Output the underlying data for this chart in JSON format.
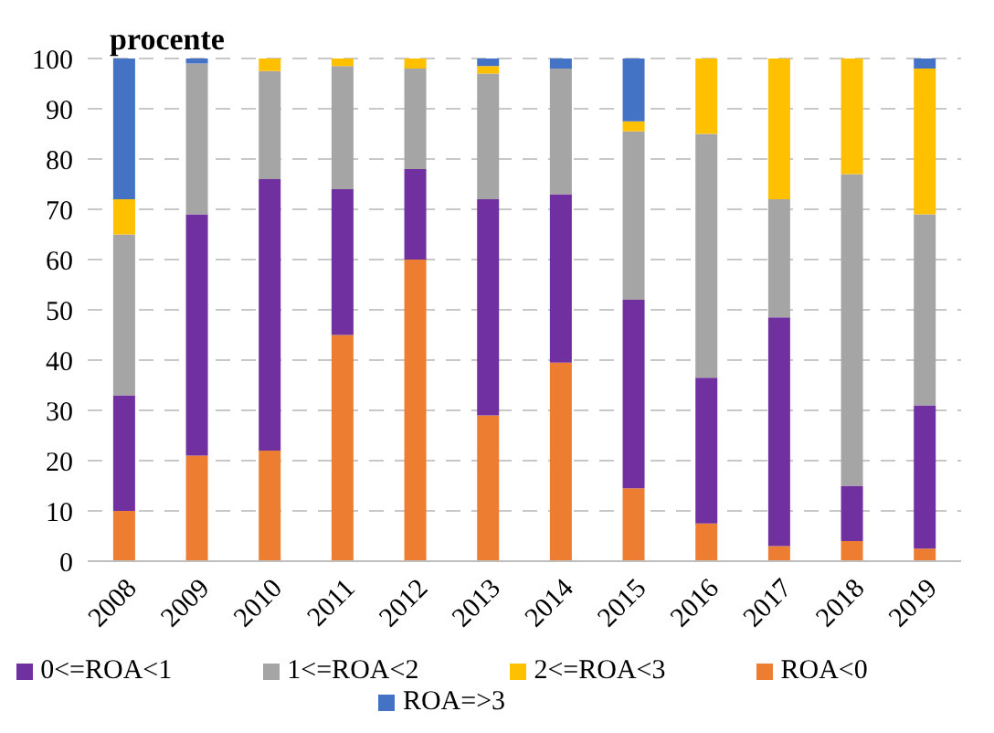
{
  "chart_data": {
    "type": "bar",
    "title": "procente",
    "stacked": true,
    "categories": [
      "2008",
      "2009",
      "2010",
      "2011",
      "2012",
      "2013",
      "2014",
      "2015",
      "2016",
      "2017",
      "2018",
      "2019"
    ],
    "series": [
      {
        "name": "ROA<0",
        "color": "#ed7d31",
        "values": [
          10,
          21,
          22,
          45,
          60,
          29,
          39.5,
          14.5,
          7.5,
          3,
          4,
          2.5
        ]
      },
      {
        "name": "0<=ROA<1",
        "color": "#7030a0",
        "values": [
          23,
          48,
          54,
          29,
          18,
          43,
          33.5,
          37.5,
          29,
          45.5,
          11,
          28.5
        ]
      },
      {
        "name": "1<=ROA<2",
        "color": "#a5a5a5",
        "values": [
          32,
          30,
          21.5,
          24.5,
          20,
          25,
          25,
          33.5,
          48.5,
          23.5,
          62,
          38
        ]
      },
      {
        "name": "2<=ROA<3",
        "color": "#ffc000",
        "values": [
          7,
          0,
          2.5,
          1.5,
          2,
          1.5,
          0,
          2,
          15,
          28,
          23,
          29
        ]
      },
      {
        "name": "ROA=>3",
        "color": "#4472c4",
        "values": [
          28,
          1,
          0,
          0,
          0,
          1.5,
          2,
          12.5,
          0,
          0,
          0,
          2
        ]
      }
    ],
    "ylim": [
      0,
      100
    ],
    "yticks": [
      0,
      10,
      20,
      30,
      40,
      50,
      60,
      70,
      80,
      90,
      100
    ],
    "grid": "y",
    "legend": "bottom"
  }
}
